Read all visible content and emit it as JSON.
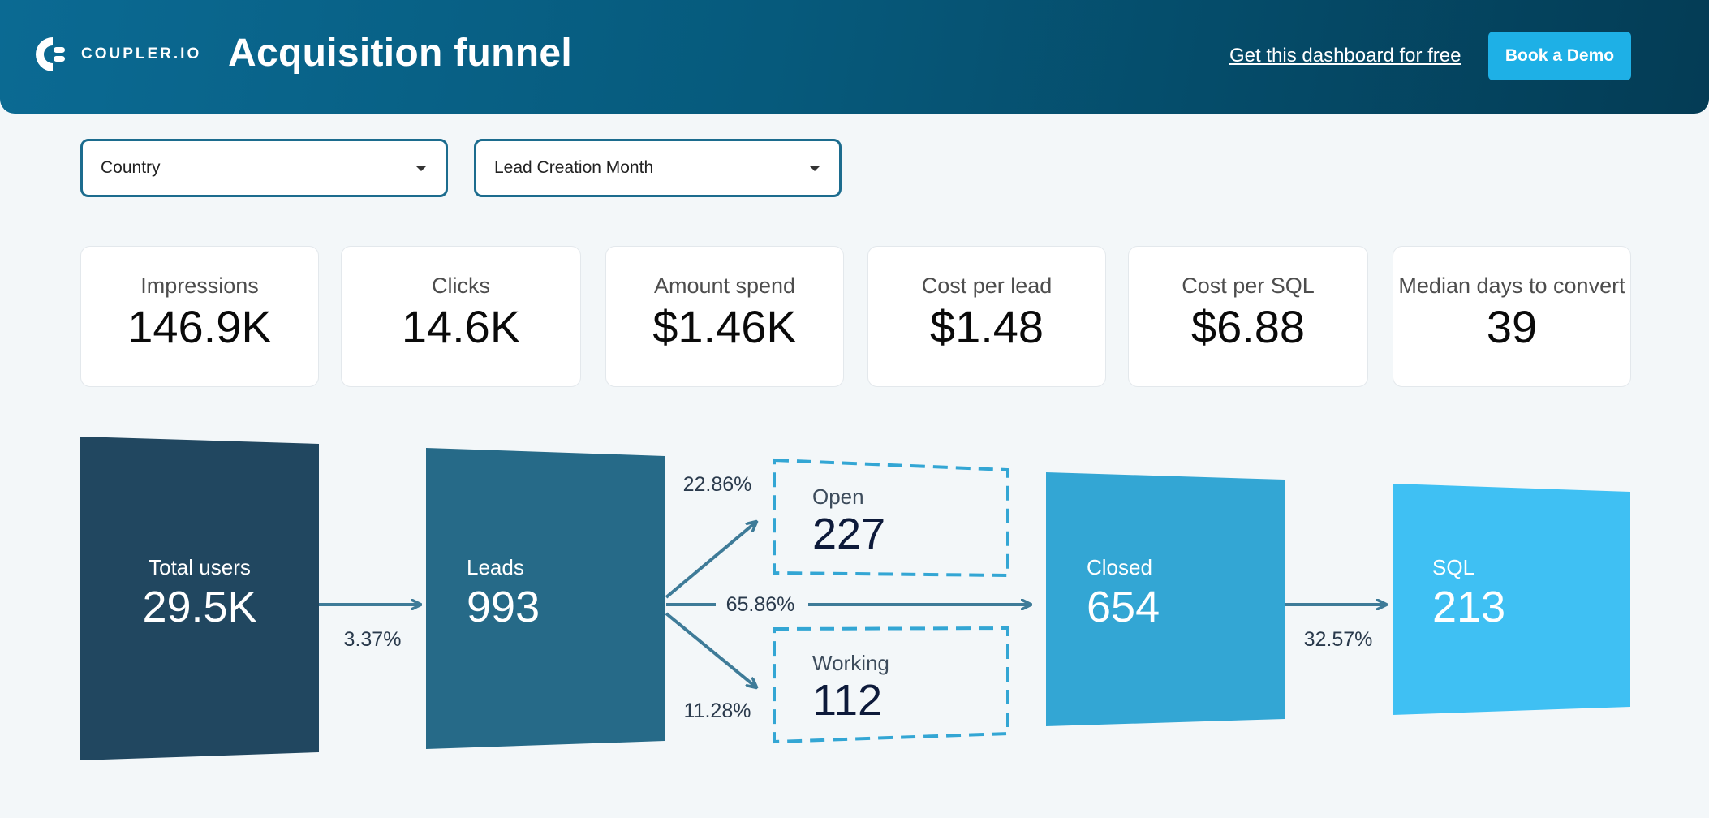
{
  "header": {
    "logo_text": "COUPLER.IO",
    "title": "Acquisition funnel",
    "link_label": "Get this dashboard for free",
    "button_label": "Book a Demo"
  },
  "filters": [
    {
      "label": "Country"
    },
    {
      "label": "Lead Creation Month"
    }
  ],
  "kpis": [
    {
      "label": "Impressions",
      "value": "146.9K"
    },
    {
      "label": "Clicks",
      "value": "14.6K"
    },
    {
      "label": "Amount spend",
      "value": "$1.46K"
    },
    {
      "label": "Cost per lead",
      "value": "$1.48"
    },
    {
      "label": "Cost per SQL",
      "value": "$6.88"
    },
    {
      "label": "Median days to convert",
      "value": "39"
    }
  ],
  "funnel": {
    "total_users": {
      "label": "Total users",
      "value": "29.5K"
    },
    "leads": {
      "label": "Leads",
      "value": "993"
    },
    "open": {
      "label": "Open",
      "value": "227"
    },
    "working": {
      "label": "Working",
      "value": "112"
    },
    "closed": {
      "label": "Closed",
      "value": "654"
    },
    "sql": {
      "label": "SQL",
      "value": "213"
    },
    "rates": {
      "users_to_leads": "3.37%",
      "leads_to_open": "22.86%",
      "leads_to_closed": "65.86%",
      "leads_to_working": "11.28%",
      "closed_to_sql": "32.57%"
    },
    "colors": {
      "total_users": "#214760",
      "leads": "#266a88",
      "closed": "#33a6d4",
      "sql": "#3fc0f3",
      "arrows": "#3e7b98",
      "dashed_border": "#33a6d4"
    }
  }
}
